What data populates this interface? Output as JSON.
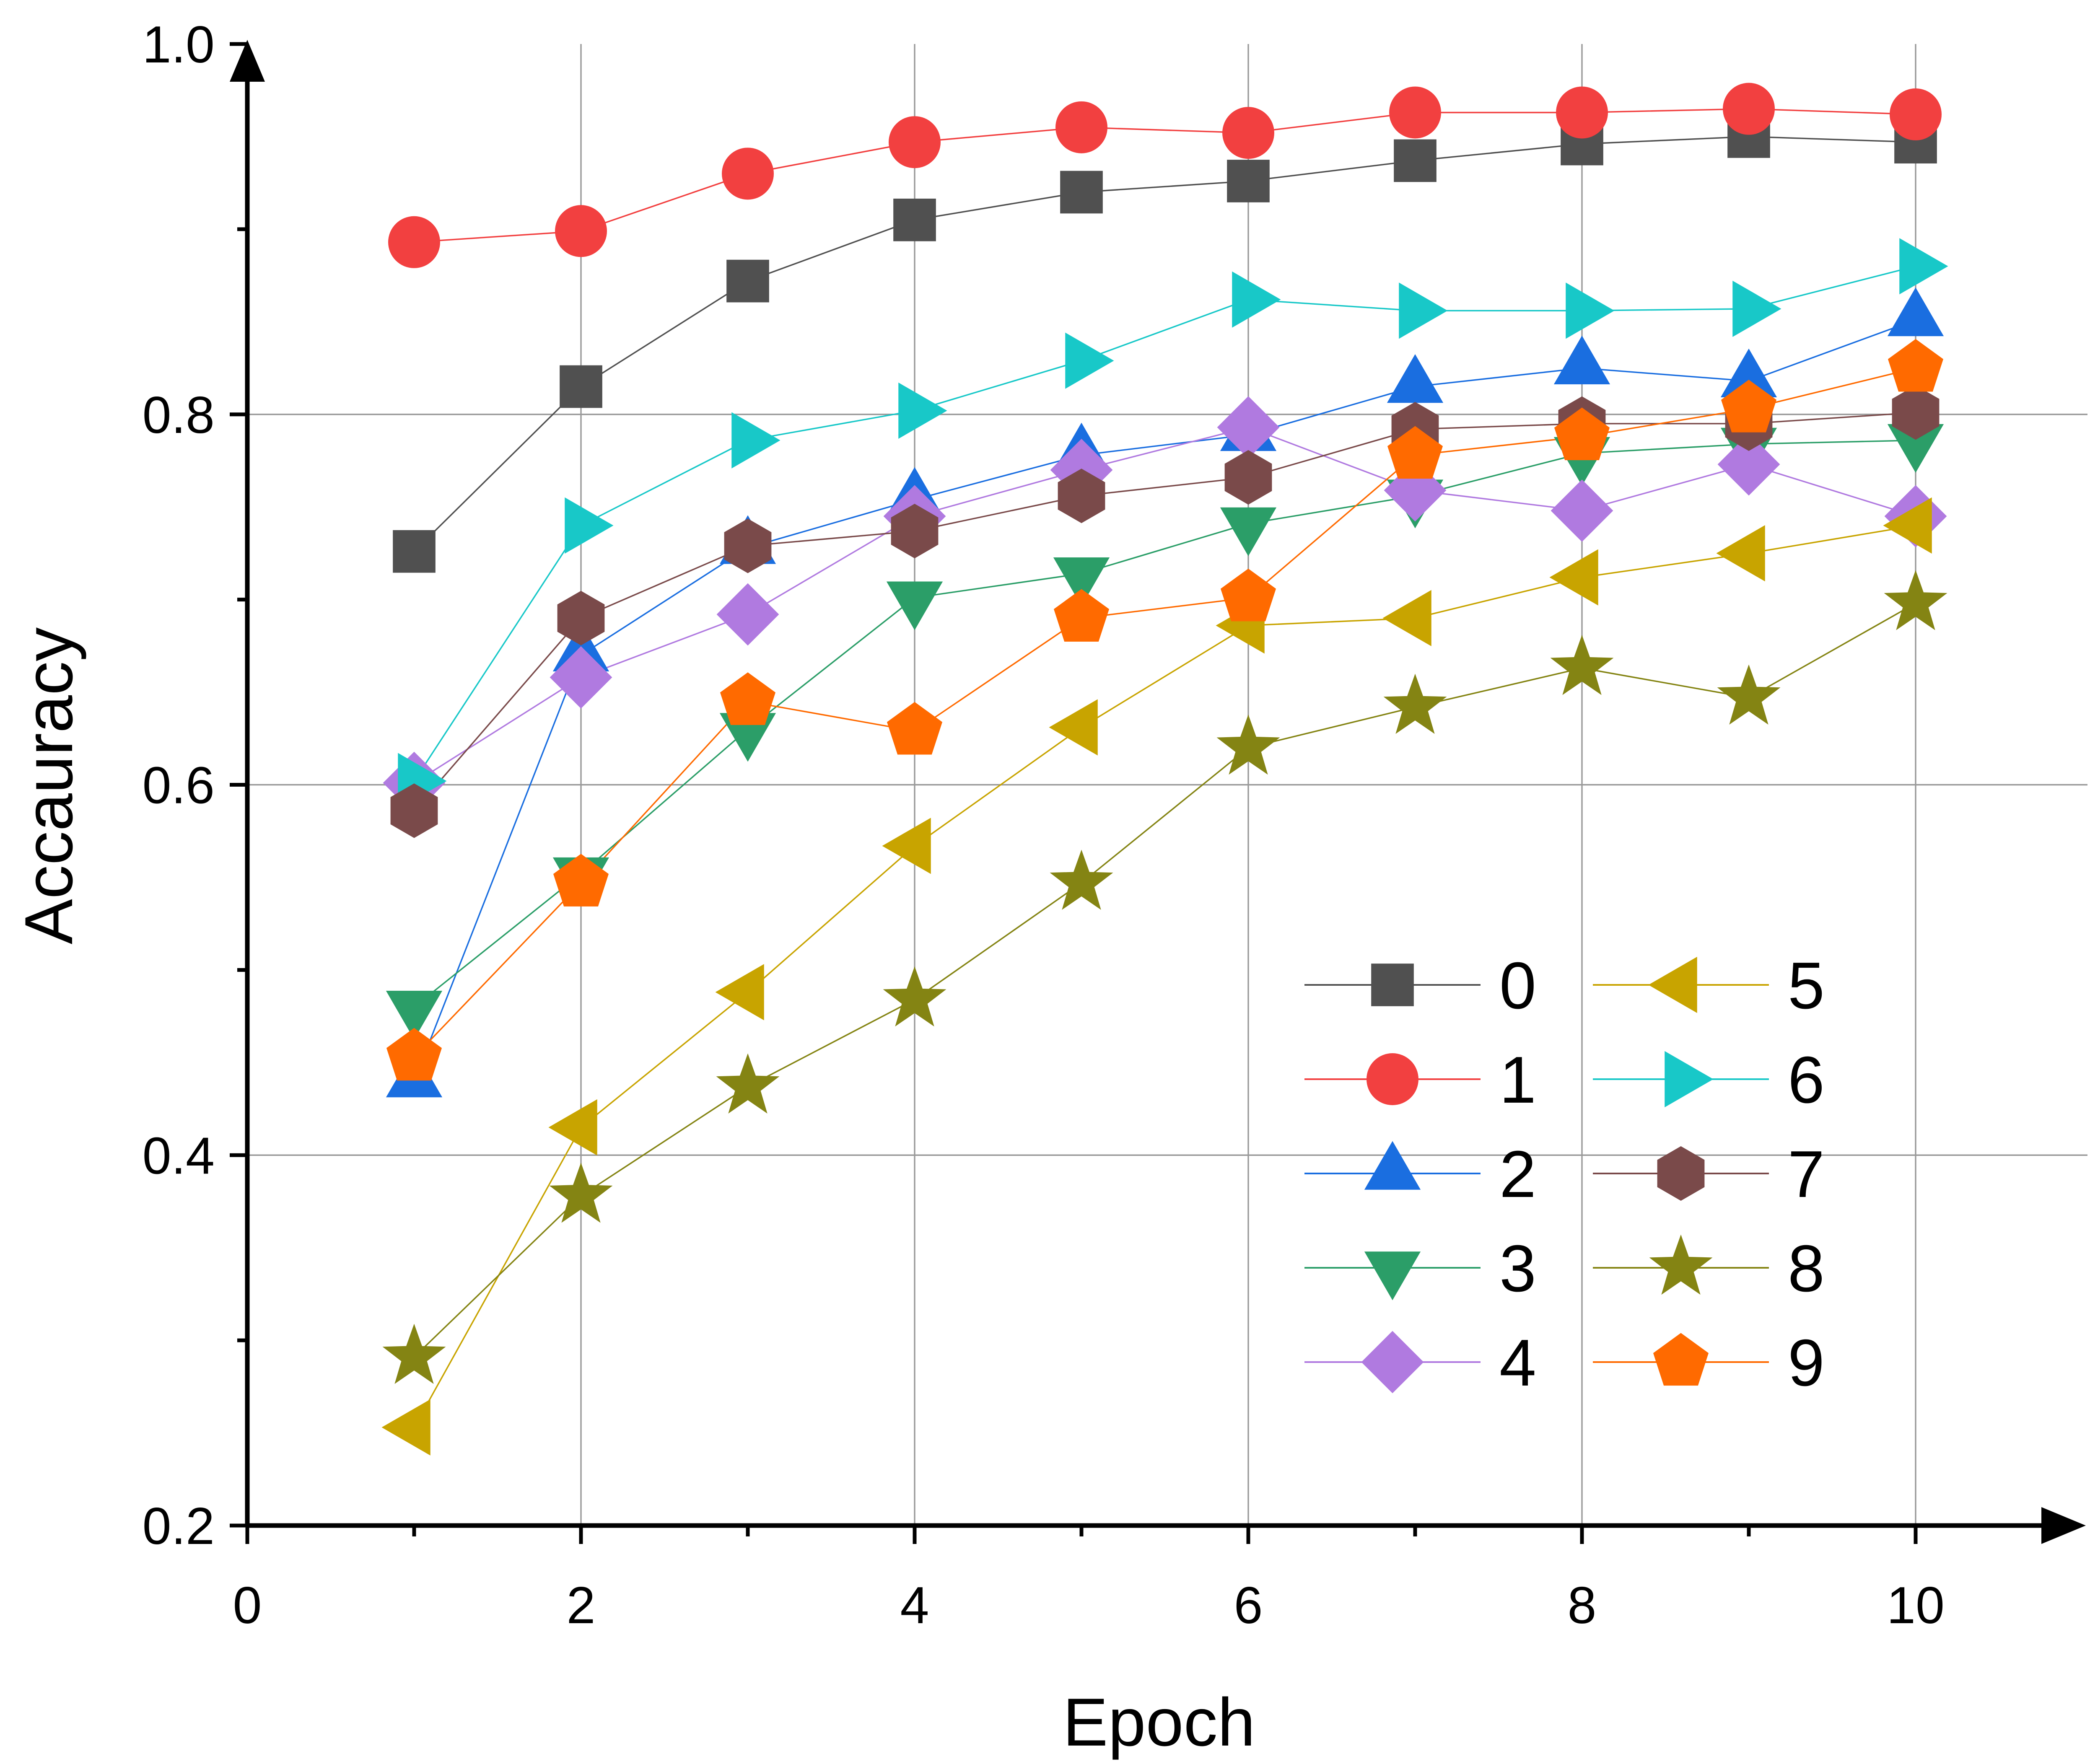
{
  "chart_data": {
    "type": "line",
    "xlabel": "Epoch",
    "ylabel": "Accauracy",
    "xlim": [
      0,
      11
    ],
    "ylim": [
      0.2,
      1.0
    ],
    "x_ticks": [
      0,
      2,
      4,
      6,
      8,
      10
    ],
    "x_tick_labels": [
      "0",
      "2",
      "4",
      "6",
      "8",
      "10"
    ],
    "y_ticks": [
      0.2,
      0.4,
      0.6,
      0.8,
      1.0
    ],
    "y_tick_labels": [
      "0.2",
      "0.4",
      "0.6",
      "0.8",
      "1.0"
    ],
    "grid": true,
    "legend_position": "bottom-right",
    "x": [
      1,
      2,
      3,
      4,
      5,
      6,
      7,
      8,
      9,
      10
    ],
    "series": [
      {
        "name": "0",
        "color": "#505050",
        "marker": "square",
        "values": [
          0.726,
          0.815,
          0.872,
          0.905,
          0.92,
          0.926,
          0.937,
          0.946,
          0.95,
          0.947
        ]
      },
      {
        "name": "1",
        "color": "#f24040",
        "marker": "circle",
        "values": [
          0.893,
          0.899,
          0.93,
          0.947,
          0.955,
          0.952,
          0.963,
          0.963,
          0.965,
          0.962
        ]
      },
      {
        "name": "2",
        "color": "#1a6ee0",
        "marker": "triangle-up",
        "values": [
          0.44,
          0.67,
          0.728,
          0.754,
          0.778,
          0.789,
          0.815,
          0.825,
          0.818,
          0.851
        ]
      },
      {
        "name": "3",
        "color": "#2b9e68",
        "marker": "triangle-down",
        "values": [
          0.48,
          0.552,
          0.63,
          0.701,
          0.714,
          0.741,
          0.756,
          0.779,
          0.784,
          0.786
        ]
      },
      {
        "name": "4",
        "color": "#b07ae0",
        "marker": "diamond",
        "values": [
          0.601,
          0.658,
          0.692,
          0.745,
          0.77,
          0.793,
          0.759,
          0.748,
          0.773,
          0.745
        ]
      },
      {
        "name": "5",
        "color": "#c8a400",
        "marker": "triangle-left",
        "values": [
          0.253,
          0.415,
          0.488,
          0.567,
          0.631,
          0.686,
          0.69,
          0.712,
          0.725,
          0.74
        ]
      },
      {
        "name": "6",
        "color": "#18c8c8",
        "marker": "triangle-right",
        "values": [
          0.602,
          0.74,
          0.786,
          0.802,
          0.829,
          0.862,
          0.856,
          0.856,
          0.857,
          0.88
        ]
      },
      {
        "name": "7",
        "color": "#7a4a4a",
        "marker": "hexagon",
        "values": [
          0.586,
          0.69,
          0.729,
          0.737,
          0.756,
          0.766,
          0.792,
          0.795,
          0.795,
          0.801
        ]
      },
      {
        "name": "8",
        "color": "#848413",
        "marker": "star",
        "values": [
          0.291,
          0.378,
          0.437,
          0.484,
          0.547,
          0.62,
          0.642,
          0.663,
          0.647,
          0.698
        ]
      },
      {
        "name": "9",
        "color": "#ff6a00",
        "marker": "pentagon",
        "values": [
          0.453,
          0.547,
          0.645,
          0.629,
          0.69,
          0.701,
          0.778,
          0.788,
          0.803,
          0.825
        ]
      }
    ]
  }
}
